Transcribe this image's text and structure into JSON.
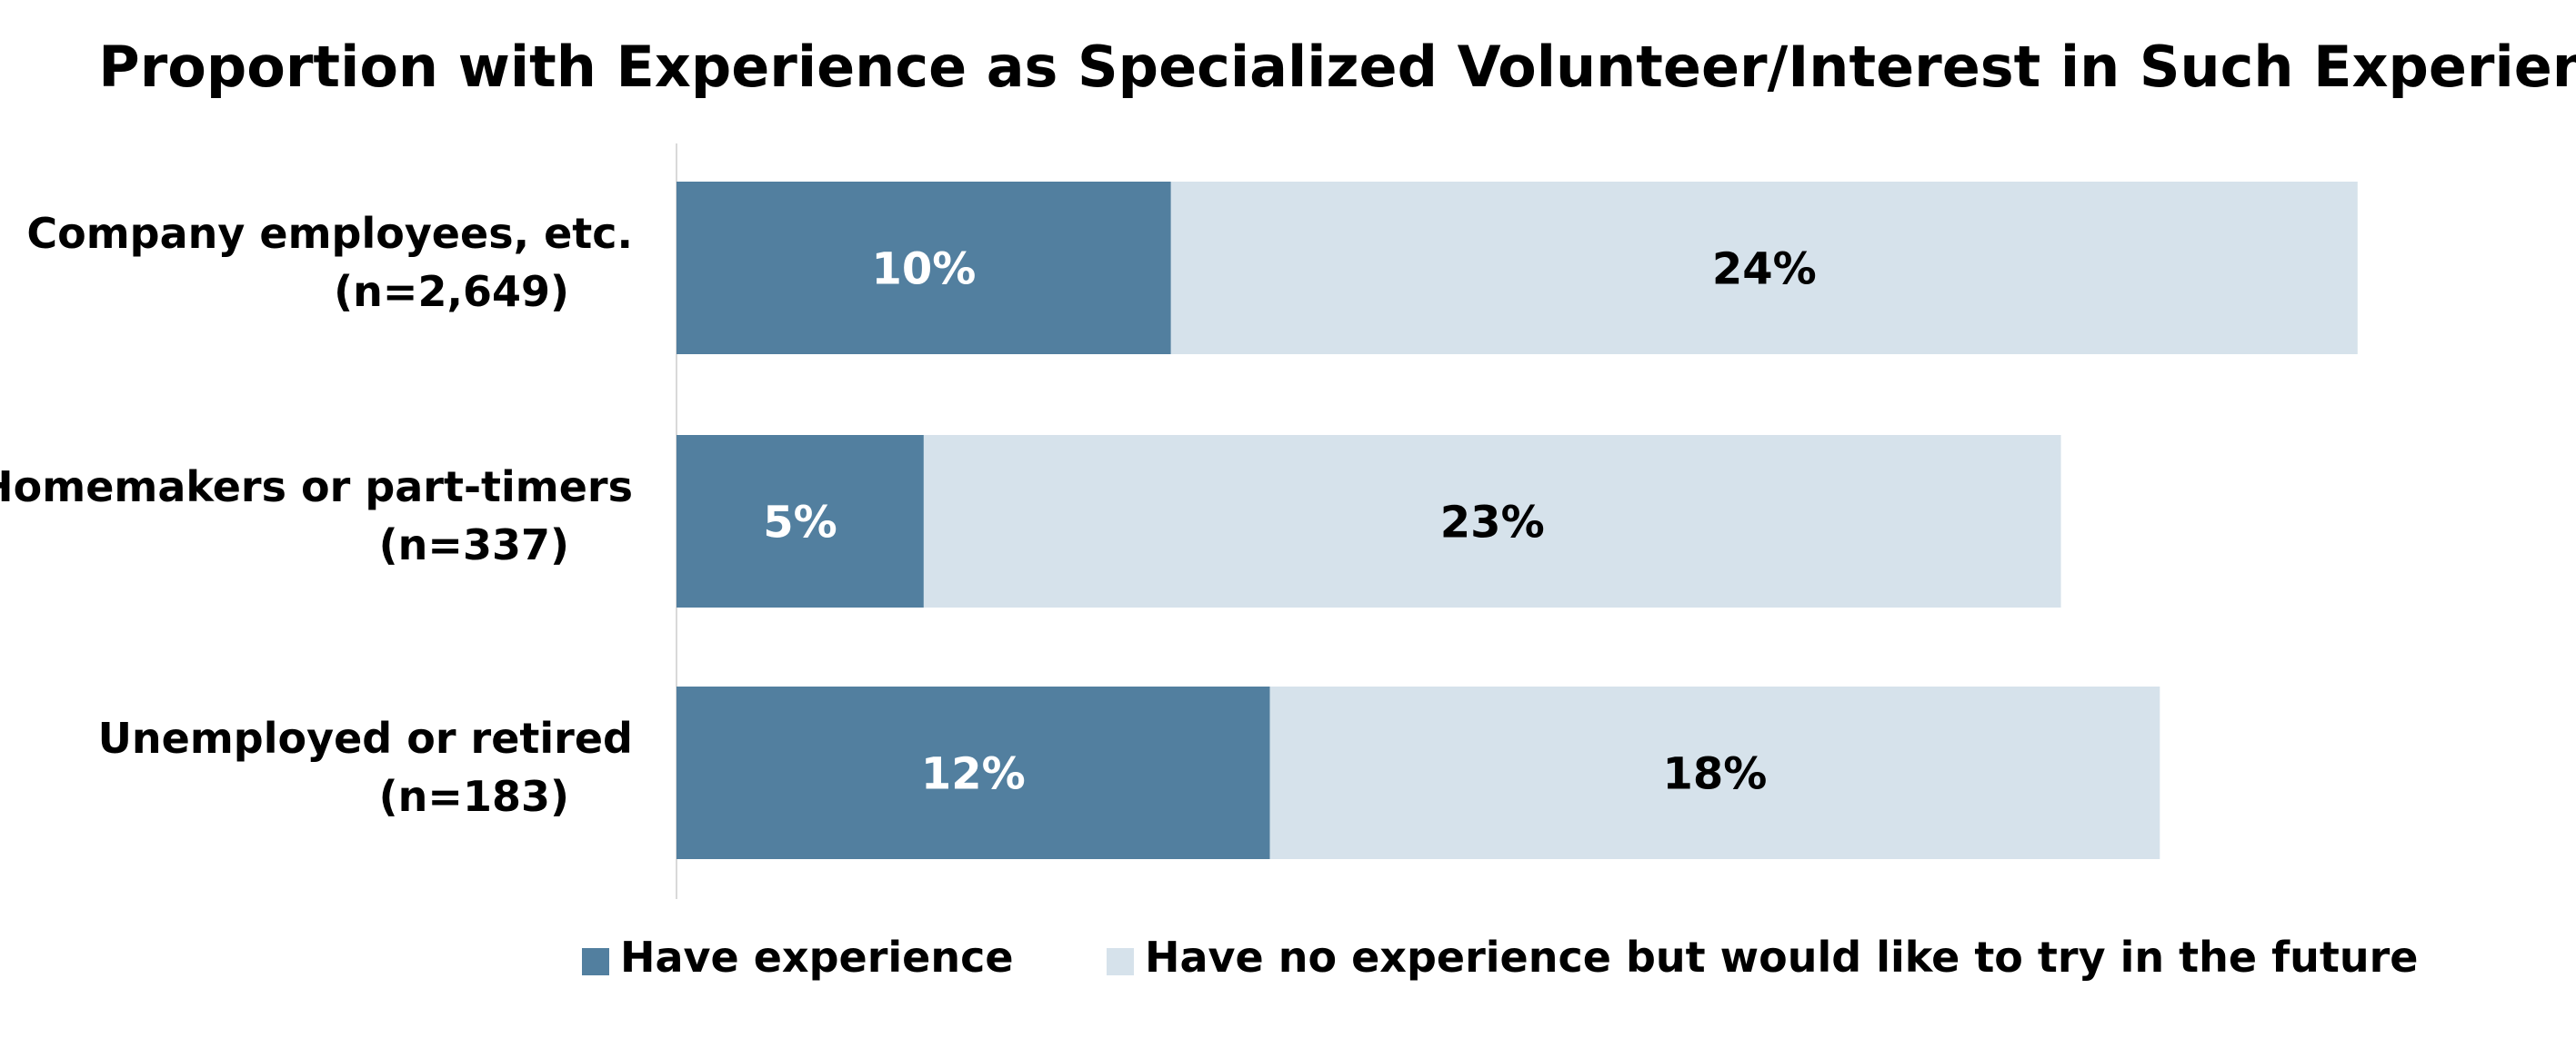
{
  "chart_data": {
    "type": "bar",
    "orientation": "horizontal",
    "stacked": true,
    "title": "Proportion with Experience as Specialized Volunteer/Interest in Such Experience",
    "categories": [
      {
        "name": "Company employees, etc.",
        "n": "(n=2,649)"
      },
      {
        "name": "Homemakers or part-timers",
        "n": "(n=337)"
      },
      {
        "name": "Unemployed or retired",
        "n": "(n=183)"
      }
    ],
    "series": [
      {
        "name": "Have experience",
        "color": "#527f9f",
        "label_color": "#ffffff",
        "values": [
          10,
          5,
          12
        ],
        "labels": [
          "10%",
          "5%",
          "12%"
        ]
      },
      {
        "name": "Have no experience but would like to try in the future",
        "color": "#d6e2eb",
        "label_color": "#000000",
        "values": [
          24,
          23,
          18
        ],
        "labels": [
          "24%",
          "23%",
          "18%"
        ]
      }
    ],
    "xlim": [
      0,
      34.5
    ],
    "grid": false,
    "legend_position": "bottom"
  }
}
